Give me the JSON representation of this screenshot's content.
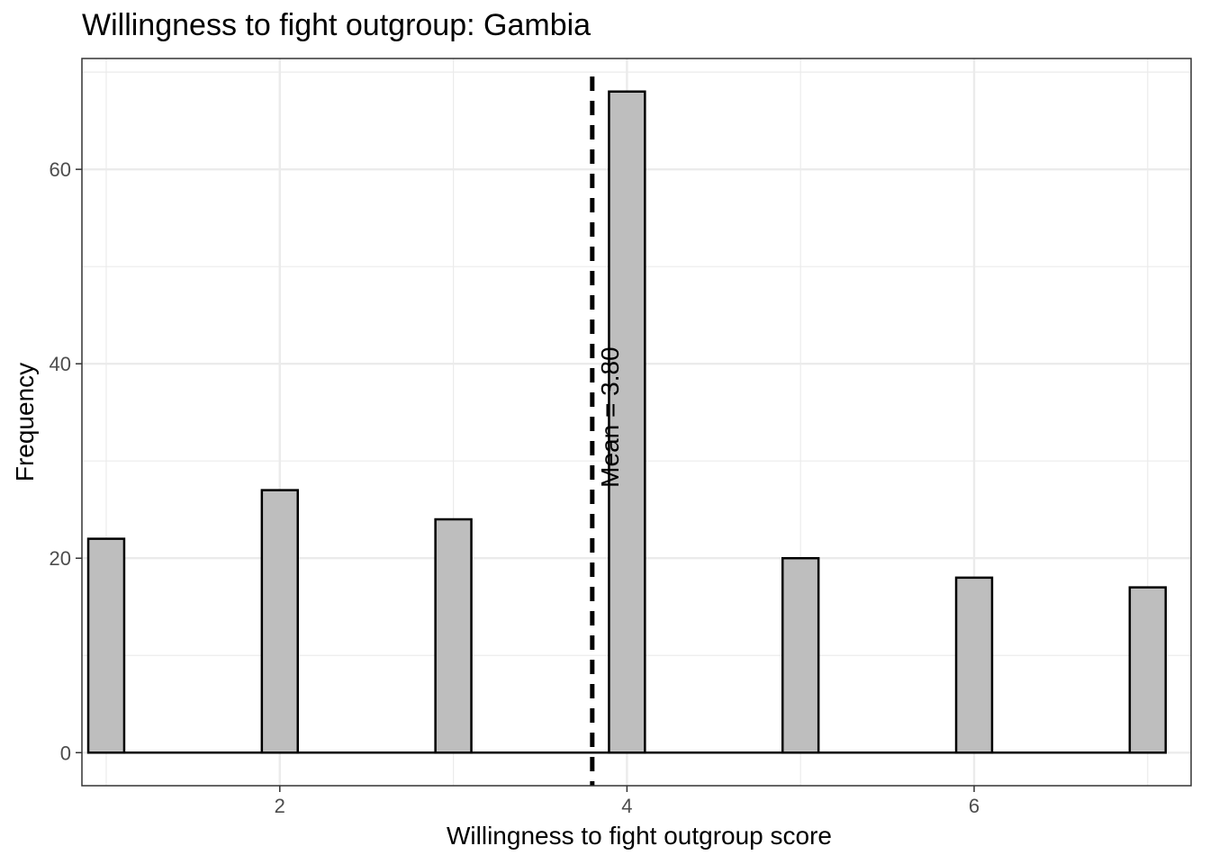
{
  "chart_data": {
    "type": "bar",
    "title": "Willingness to fight outgroup: Gambia",
    "xlabel": "Willingness to fight outgroup score",
    "ylabel": "Frequency",
    "x_range": [
      0.86,
      7.25
    ],
    "ylim": [
      -3.4,
      71.4
    ],
    "x_ticks": [
      2,
      4,
      6
    ],
    "y_ticks": [
      0,
      20,
      40,
      60
    ],
    "x_minor": [
      1,
      3,
      5,
      7
    ],
    "y_minor": [
      10,
      30,
      50,
      70
    ],
    "grid": true,
    "bin_width": 0.207,
    "bins": [
      {
        "x": 1.0,
        "count": 22
      },
      {
        "x": 2.0,
        "count": 27
      },
      {
        "x": 3.0,
        "count": 24
      },
      {
        "x": 4.0,
        "count": 68
      },
      {
        "x": 5.0,
        "count": 20
      },
      {
        "x": 6.0,
        "count": 18
      },
      {
        "x": 7.0,
        "count": 17
      }
    ],
    "mean": 3.8,
    "mean_label": "Mean = 3.80",
    "colors": {
      "bar_fill": "#bebebe",
      "bar_stroke": "#000000",
      "grid": "#ebebeb",
      "panel_border": "#333333",
      "mean_line": "#000000"
    }
  }
}
